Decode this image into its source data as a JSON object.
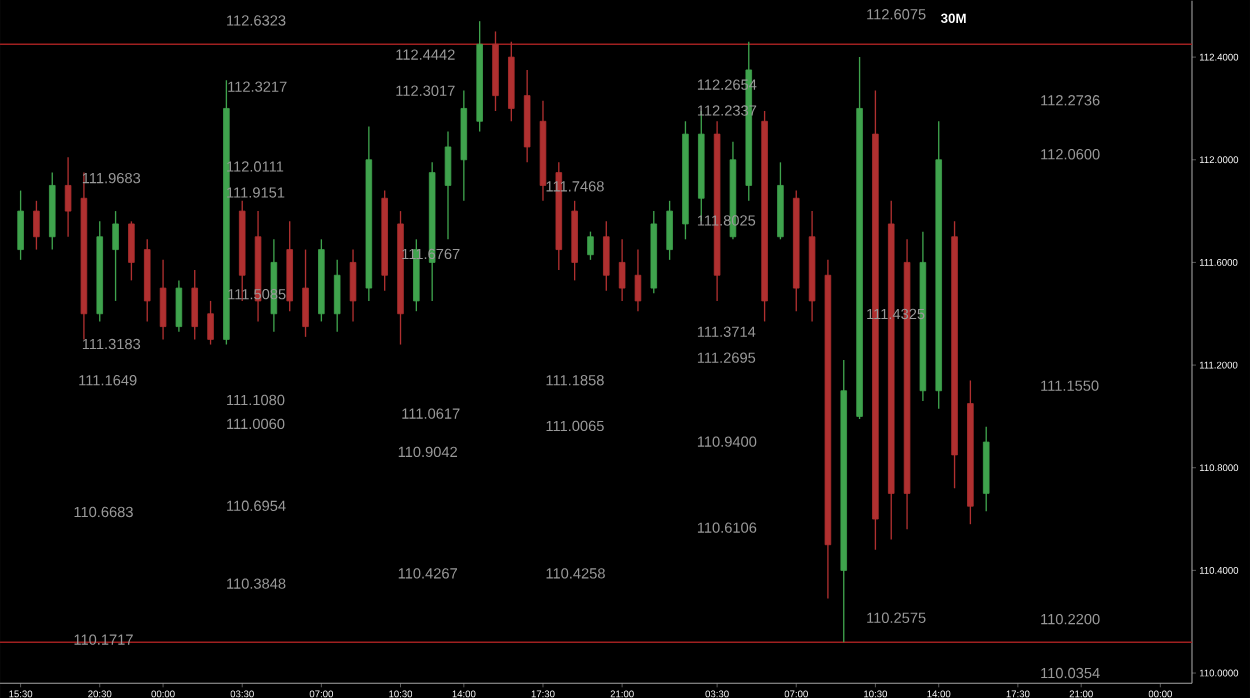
{
  "chart_data": {
    "type": "candlestick",
    "title": "30M",
    "categories": [
      "15:30",
      null,
      null,
      null,
      null,
      "20:30",
      null,
      null,
      null,
      "00:00",
      null,
      null,
      null,
      null,
      "03:30",
      null,
      null,
      null,
      null,
      "07:00",
      null,
      null,
      null,
      null,
      "10:30",
      null,
      null,
      null,
      "14:00",
      null,
      null,
      null,
      null,
      "17:30",
      null,
      null,
      null,
      null,
      "21:00",
      null,
      null,
      null,
      null,
      null,
      "03:30",
      null,
      null,
      null,
      null,
      "07:00",
      null,
      null,
      null,
      null,
      "10:30",
      null,
      null,
      null,
      "14:00",
      null,
      null,
      null,
      null,
      "17:30",
      null,
      null,
      null,
      "21:00",
      null,
      null,
      null,
      null,
      "00:00"
    ],
    "ohlc": [
      [
        111.65,
        111.88,
        111.61,
        111.8
      ],
      [
        111.8,
        111.84,
        111.65,
        111.7
      ],
      [
        111.7,
        111.95,
        111.65,
        111.9
      ],
      [
        111.9,
        112.01,
        111.7,
        111.8
      ],
      [
        111.85,
        111.95,
        111.3,
        111.4
      ],
      [
        111.4,
        111.76,
        111.37,
        111.7
      ],
      [
        111.65,
        111.8,
        111.45,
        111.75
      ],
      [
        111.75,
        111.76,
        111.53,
        111.6
      ],
      [
        111.65,
        111.69,
        111.37,
        111.45
      ],
      [
        111.5,
        111.61,
        111.3,
        111.35
      ],
      [
        111.35,
        111.53,
        111.33,
        111.5
      ],
      [
        111.5,
        111.57,
        111.3,
        111.35
      ],
      [
        111.4,
        111.45,
        111.28,
        111.3
      ],
      [
        111.3,
        112.31,
        111.28,
        112.2
      ],
      [
        111.8,
        111.84,
        111.45,
        111.55
      ],
      [
        111.7,
        111.8,
        111.37,
        111.45
      ],
      [
        111.4,
        111.69,
        111.33,
        111.6
      ],
      [
        111.65,
        111.76,
        111.41,
        111.45
      ],
      [
        111.5,
        111.65,
        111.31,
        111.35
      ],
      [
        111.4,
        111.69,
        111.37,
        111.65
      ],
      [
        111.4,
        111.61,
        111.33,
        111.55
      ],
      [
        111.6,
        111.65,
        111.37,
        111.45
      ],
      [
        111.5,
        112.13,
        111.45,
        112.0
      ],
      [
        111.85,
        111.88,
        111.49,
        111.55
      ],
      [
        111.75,
        111.8,
        111.28,
        111.4
      ],
      [
        111.45,
        111.69,
        111.41,
        111.65
      ],
      [
        111.6,
        111.99,
        111.45,
        111.95
      ],
      [
        111.9,
        112.11,
        111.69,
        112.05
      ],
      [
        112.0,
        112.27,
        111.84,
        112.2
      ],
      [
        112.15,
        112.54,
        112.11,
        112.45
      ],
      [
        112.45,
        112.5,
        112.19,
        112.25
      ],
      [
        112.4,
        112.46,
        112.15,
        112.2
      ],
      [
        112.25,
        112.35,
        111.99,
        112.05
      ],
      [
        112.15,
        112.23,
        111.84,
        111.9
      ],
      [
        111.95,
        111.99,
        111.57,
        111.65
      ],
      [
        111.8,
        111.84,
        111.53,
        111.6
      ],
      [
        111.63,
        111.72,
        111.61,
        111.7
      ],
      [
        111.7,
        111.76,
        111.49,
        111.55
      ],
      [
        111.6,
        111.69,
        111.45,
        111.5
      ],
      [
        111.55,
        111.65,
        111.41,
        111.45
      ],
      [
        111.5,
        111.8,
        111.48,
        111.75
      ],
      [
        111.65,
        111.84,
        111.61,
        111.8
      ],
      [
        111.75,
        112.15,
        111.69,
        112.1
      ],
      [
        111.85,
        112.19,
        111.76,
        112.1
      ],
      [
        112.1,
        112.15,
        111.45,
        111.55
      ],
      [
        111.7,
        112.07,
        111.69,
        112.0
      ],
      [
        111.9,
        112.46,
        111.84,
        112.35
      ],
      [
        112.15,
        112.19,
        111.37,
        111.45
      ],
      [
        111.7,
        111.99,
        111.69,
        111.9
      ],
      [
        111.85,
        111.88,
        111.41,
        111.5
      ],
      [
        111.7,
        111.8,
        111.37,
        111.45
      ],
      [
        111.55,
        111.61,
        110.29,
        110.5
      ],
      [
        110.4,
        111.22,
        110.12,
        111.1
      ],
      [
        111.0,
        112.4,
        110.99,
        112.2
      ],
      [
        112.1,
        112.27,
        110.48,
        110.6
      ],
      [
        111.75,
        111.84,
        110.52,
        110.7
      ],
      [
        111.6,
        111.69,
        110.56,
        110.7
      ],
      [
        111.1,
        111.72,
        111.06,
        111.6
      ],
      [
        111.1,
        112.15,
        111.03,
        112.0
      ],
      [
        111.7,
        111.76,
        110.72,
        110.85
      ],
      [
        111.05,
        111.14,
        110.58,
        110.65
      ],
      [
        110.7,
        110.96,
        110.63,
        110.9
      ],
      null,
      null,
      null,
      null,
      null,
      null,
      null,
      null,
      null,
      null,
      null
    ],
    "colors": [
      "#3fa34d",
      "#b03030",
      "#3fa34d",
      "#b03030",
      "#b03030",
      "#3fa34d",
      "#3fa34d",
      "#b03030",
      "#b03030",
      "#b03030",
      "#3fa34d",
      "#b03030",
      "#b03030",
      "#3fa34d",
      "#b03030",
      "#b03030",
      "#3fa34d",
      "#b03030",
      "#b03030",
      "#3fa34d",
      "#3fa34d",
      "#b03030",
      "#3fa34d",
      "#b03030",
      "#b03030",
      "#3fa34d",
      "#3fa34d",
      "#3fa34d",
      "#3fa34d",
      "#3fa34d",
      "#b03030",
      "#b03030",
      "#b03030",
      "#b03030",
      "#b03030",
      "#b03030",
      "#3fa34d",
      "#b03030",
      "#b03030",
      "#b03030",
      "#3fa34d",
      "#3fa34d",
      "#3fa34d",
      "#3fa34d",
      "#b03030",
      "#3fa34d",
      "#3fa34d",
      "#b03030",
      "#3fa34d",
      "#b03030",
      "#b03030",
      "#b03030",
      "#3fa34d",
      "#3fa34d",
      "#b03030",
      "#b03030",
      "#b03030",
      "#3fa34d",
      "#3fa34d",
      "#b03030",
      "#b03030",
      "#3fa34d",
      null,
      null,
      null,
      null,
      null,
      null,
      null,
      null,
      null,
      null,
      null
    ],
    "ylim": [
      109.96,
      112.62
    ],
    "yticks": [
      {
        "value": 112.4,
        "label": "112.4000"
      },
      {
        "value": 112.0,
        "label": "112.0000"
      },
      {
        "value": 111.6,
        "label": "111.6000"
      },
      {
        "value": 111.2,
        "label": "111.2000"
      },
      {
        "value": 110.8,
        "label": "110.8000"
      },
      {
        "value": 110.4,
        "label": "110.4000"
      },
      {
        "value": 110.0,
        "label": "110.0000"
      }
    ],
    "ref_lines": [
      {
        "axis": "y",
        "value": 112.45,
        "color": "#a02020"
      },
      {
        "axis": "y",
        "value": 110.12,
        "color": "#a02020"
      }
    ],
    "annotations": [
      "112.6323",
      "112.3217",
      "112.4442",
      "112.3017",
      "111.9683",
      "112.0111",
      "111.9151",
      "111.6767",
      "111.5085",
      "111.7468",
      "111.3183",
      "111.1649",
      "111.1080",
      "111.0060",
      "111.0617",
      "110.9042",
      "111.1858",
      "111.0065",
      "110.6683",
      "110.6954",
      "110.3848",
      "110.4267",
      "110.4258",
      "110.1717",
      "112.6075",
      "112.2654",
      "112.2337",
      "111.8025",
      "112.2736",
      "112.0600",
      "111.4325",
      "111.3714",
      "111.2695",
      "111.1550",
      "110.9400",
      "110.6106",
      "110.2575",
      "110.2200",
      "110.0354"
    ]
  }
}
